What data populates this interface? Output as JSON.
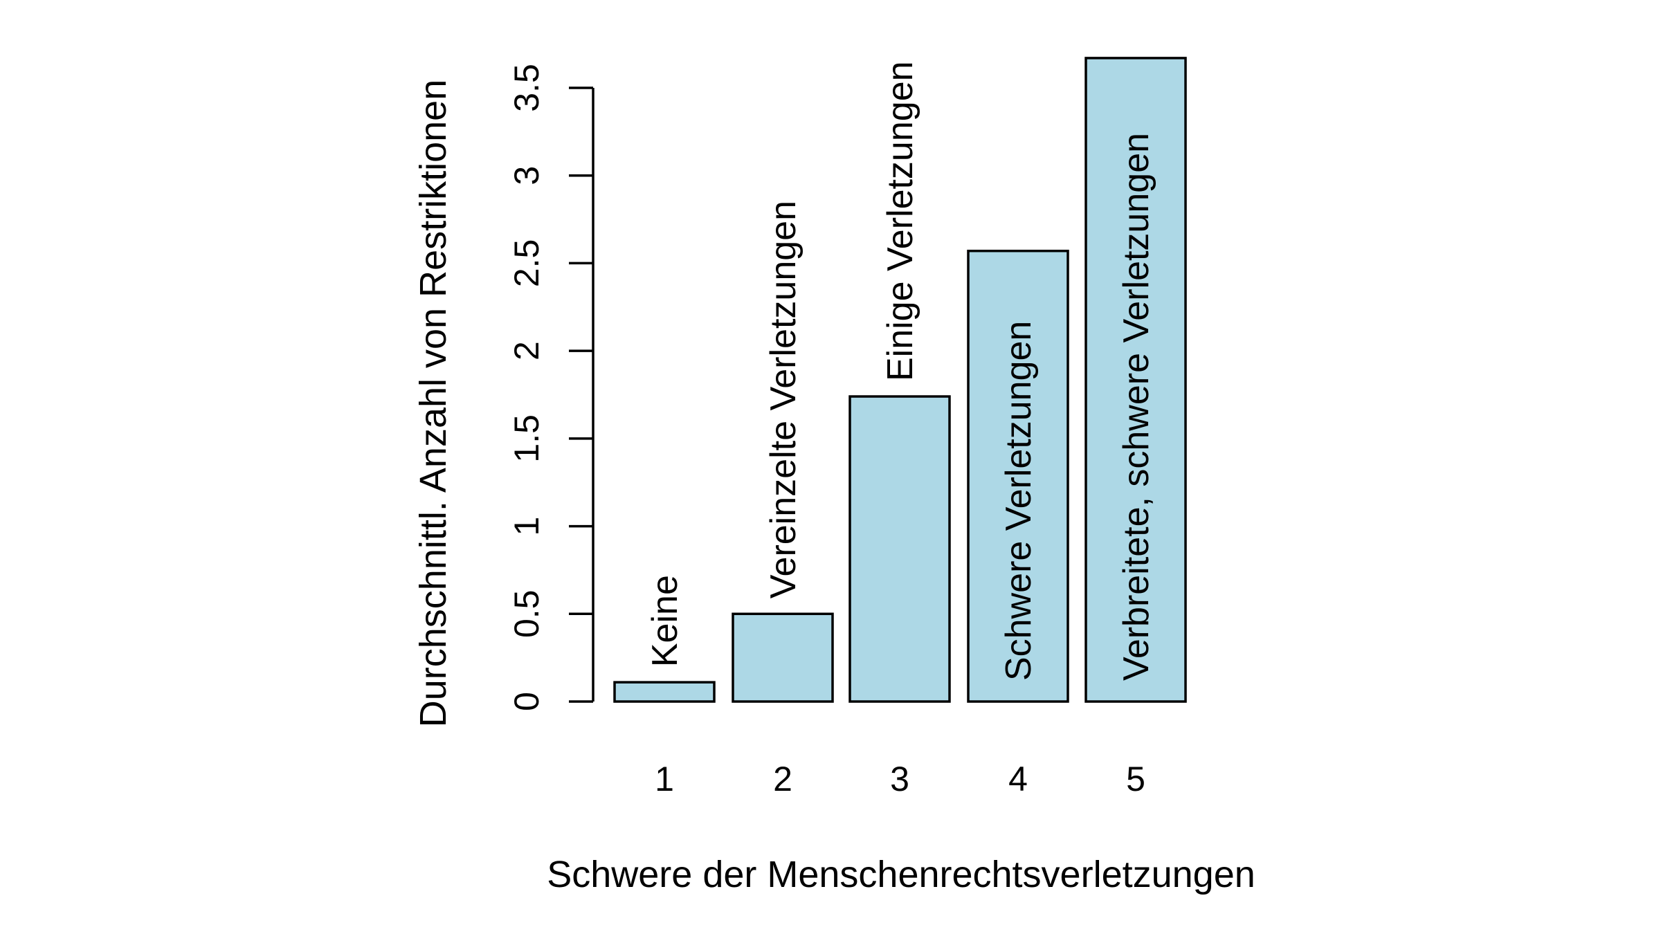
{
  "chart_data": {
    "type": "bar",
    "title": "",
    "xlabel": "Schwere der Menschenrechtsverletzungen",
    "ylabel": "Durchschnittl. Anzahl von Restriktionen",
    "categories": [
      "1",
      "2",
      "3",
      "4",
      "5"
    ],
    "bar_labels": [
      "Keine",
      "Vereinzelte Verletzungen",
      "Einige Verletzungen",
      "Schwere Verletzungen",
      "Verbreitete, schwere Verletzungen"
    ],
    "values": [
      0.11,
      0.5,
      1.74,
      2.57,
      3.67
    ],
    "ylim": [
      0,
      3.5
    ],
    "yticks": [
      "0",
      "0.5",
      "1",
      "1.5",
      "2",
      "2.5",
      "3",
      "3.5"
    ],
    "grid": false,
    "legend": null,
    "colors": {
      "bar_fill": "#ADD8E6",
      "bar_stroke": "#000000"
    }
  }
}
